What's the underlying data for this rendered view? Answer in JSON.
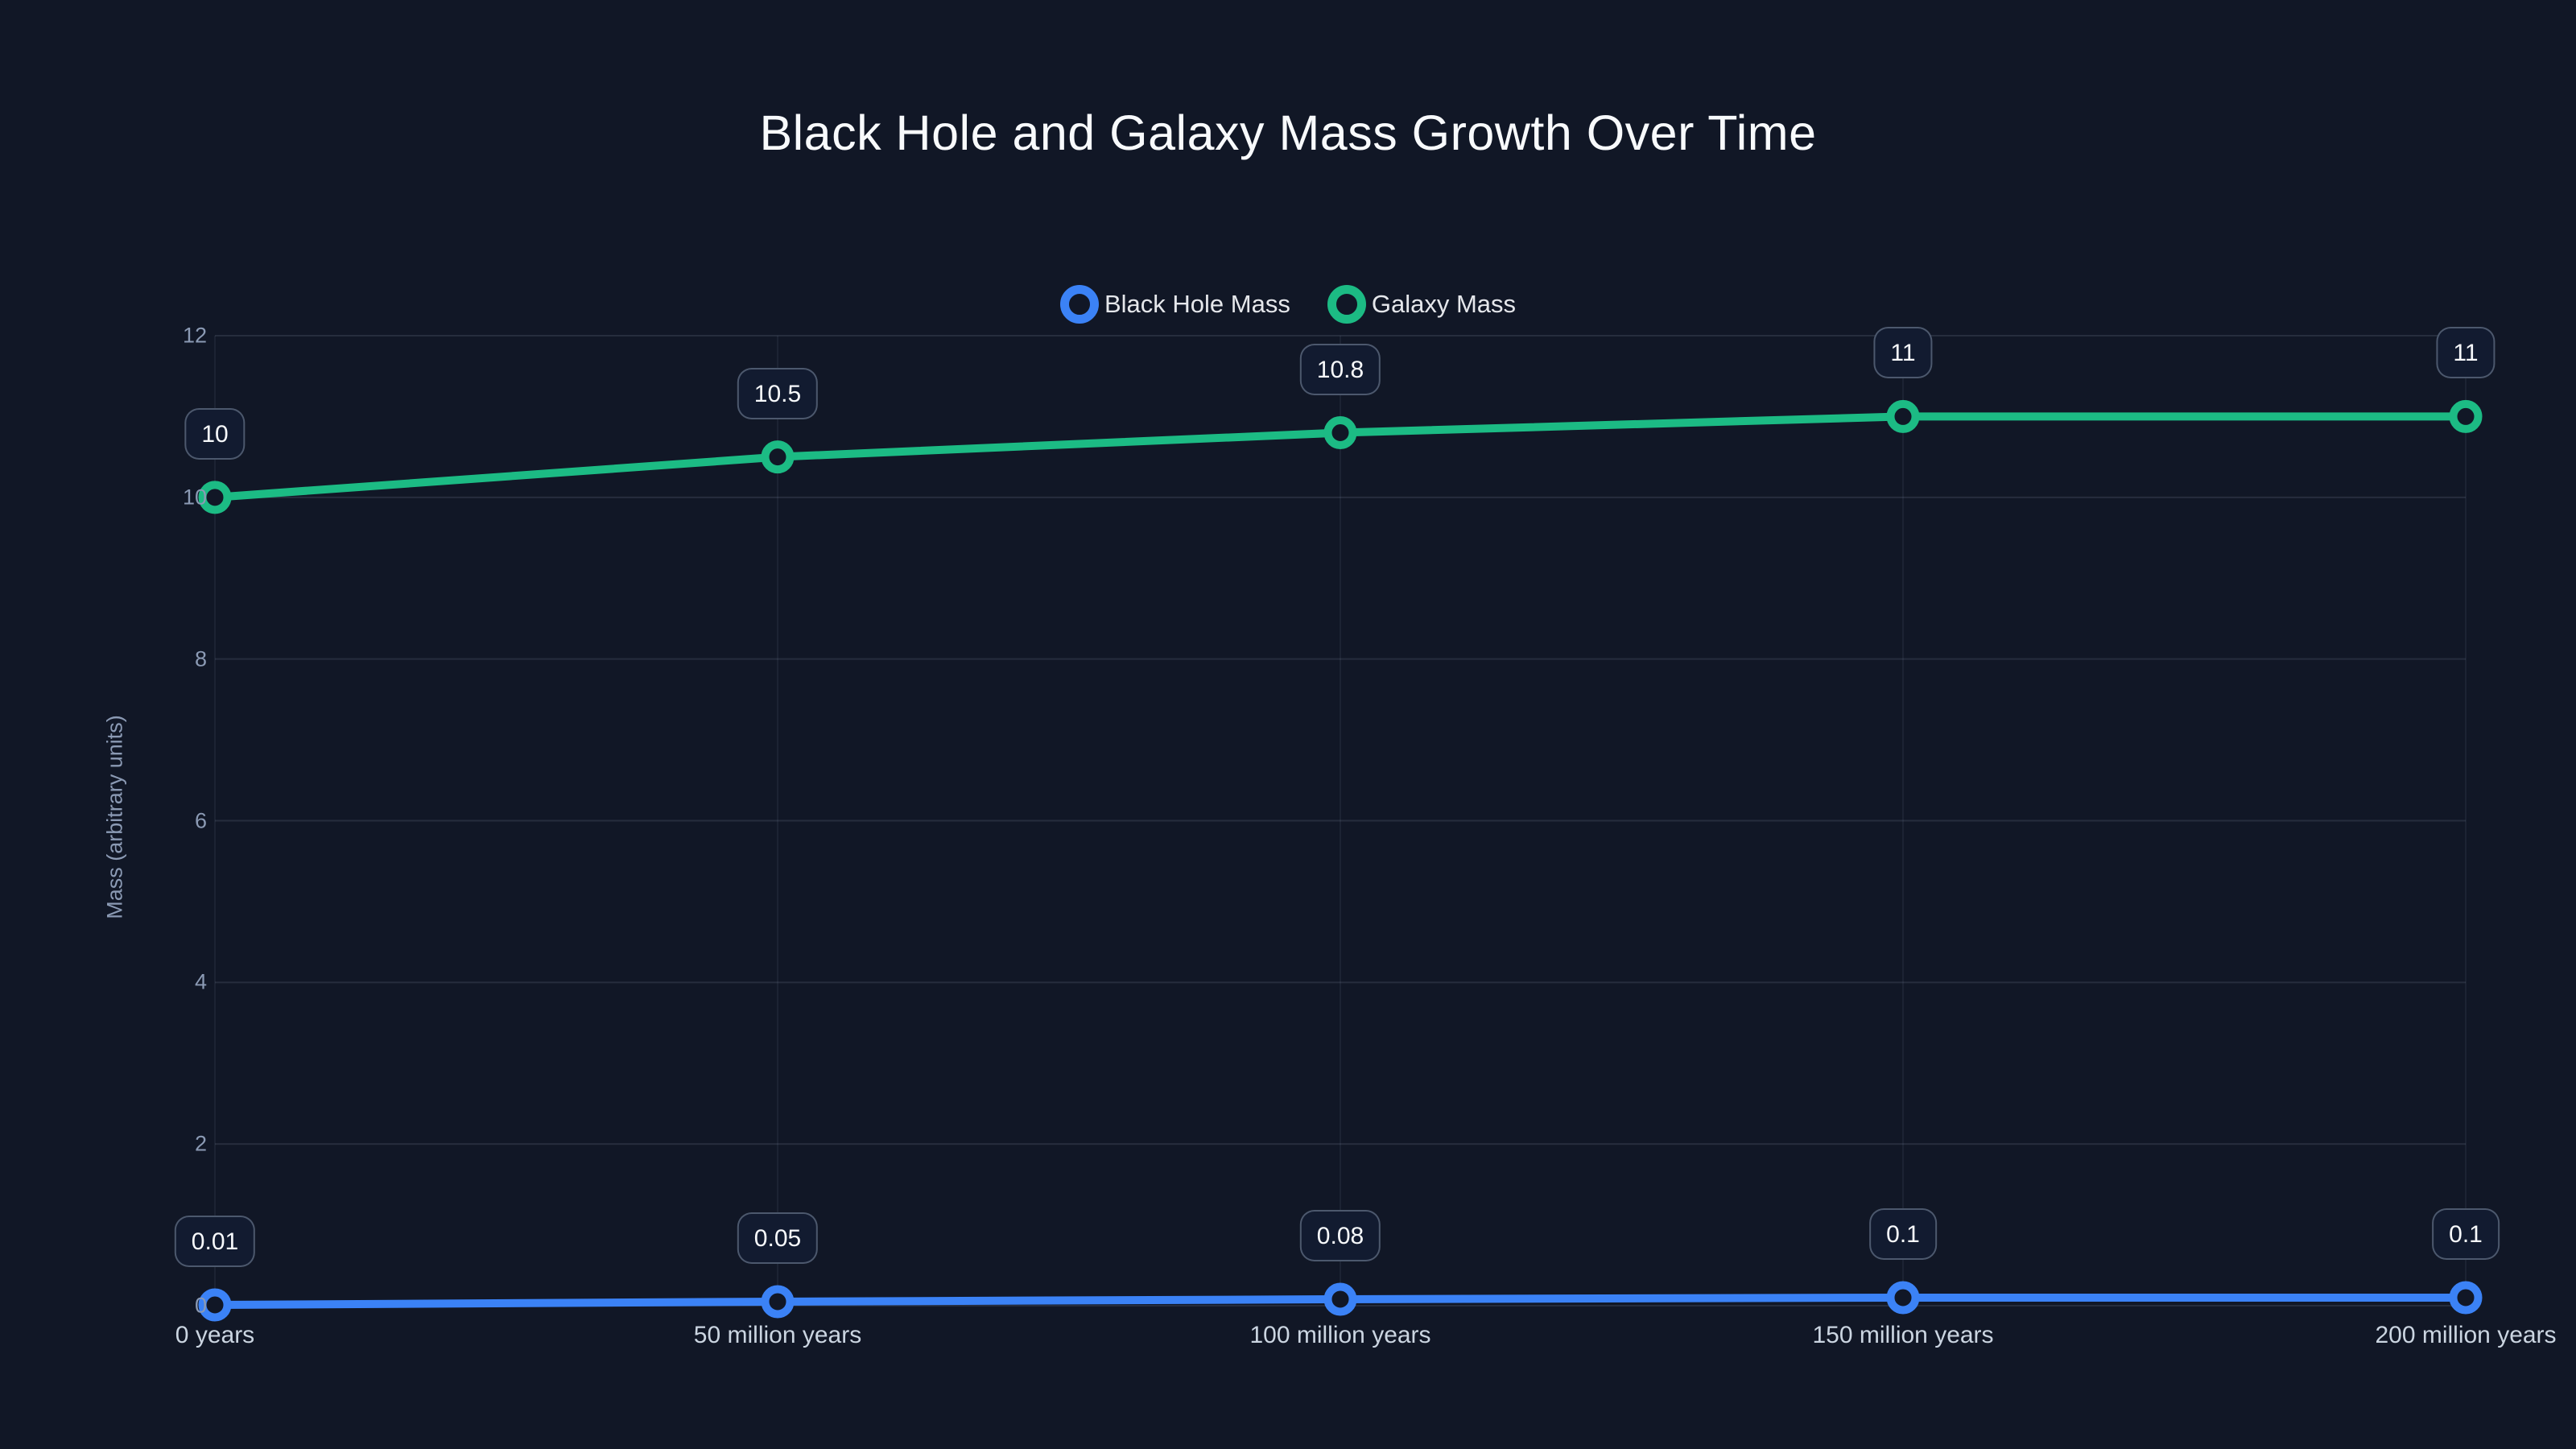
{
  "title": "Black Hole and Galaxy Mass Growth Over Time",
  "colors": {
    "background": "#111726",
    "title_text": "#f8fafc",
    "legend_text": "#e5e7eb",
    "grid_horizontal": "rgba(148,163,184,0.16)",
    "grid_vertical": "rgba(148,163,184,0.09)",
    "y_tick_text": "#8b9ab4",
    "x_tick_text": "#cbd5e1",
    "label_box_bg": "#121b30",
    "label_box_border": "rgba(148,163,184,0.45)",
    "black_hole_series": "#3b82f6",
    "galaxy_series": "#1cbb84"
  },
  "legend": {
    "items": [
      {
        "label": "Black Hole Mass",
        "color": "#3b82f6"
      },
      {
        "label": "Galaxy Mass",
        "color": "#1cbb84"
      }
    ]
  },
  "chart_data": {
    "type": "line",
    "title": "Black Hole and Galaxy Mass Growth Over Time",
    "categories": [
      "0 years",
      "50 million years",
      "100 million years",
      "150 million years",
      "200 million years"
    ],
    "series": [
      {
        "name": "Black Hole Mass",
        "color": "#3b82f6",
        "values": [
          0.01,
          0.05,
          0.08,
          0.1,
          0.1
        ],
        "labels": [
          "0.01",
          "0.05",
          "0.08",
          "0.1",
          "0.1"
        ]
      },
      {
        "name": "Galaxy Mass",
        "color": "#1cbb84",
        "values": [
          10,
          10.5,
          10.8,
          11,
          11
        ],
        "labels": [
          "10",
          "10.5",
          "10.8",
          "11",
          "11"
        ]
      }
    ],
    "xlabel": "",
    "ylabel": "Mass (arbitrary units)",
    "ylim": [
      0,
      12
    ],
    "yticks": [
      0,
      2,
      4,
      6,
      8,
      10,
      12
    ],
    "grid": true,
    "legend_position": "top",
    "point_style": "hollow-circle"
  }
}
